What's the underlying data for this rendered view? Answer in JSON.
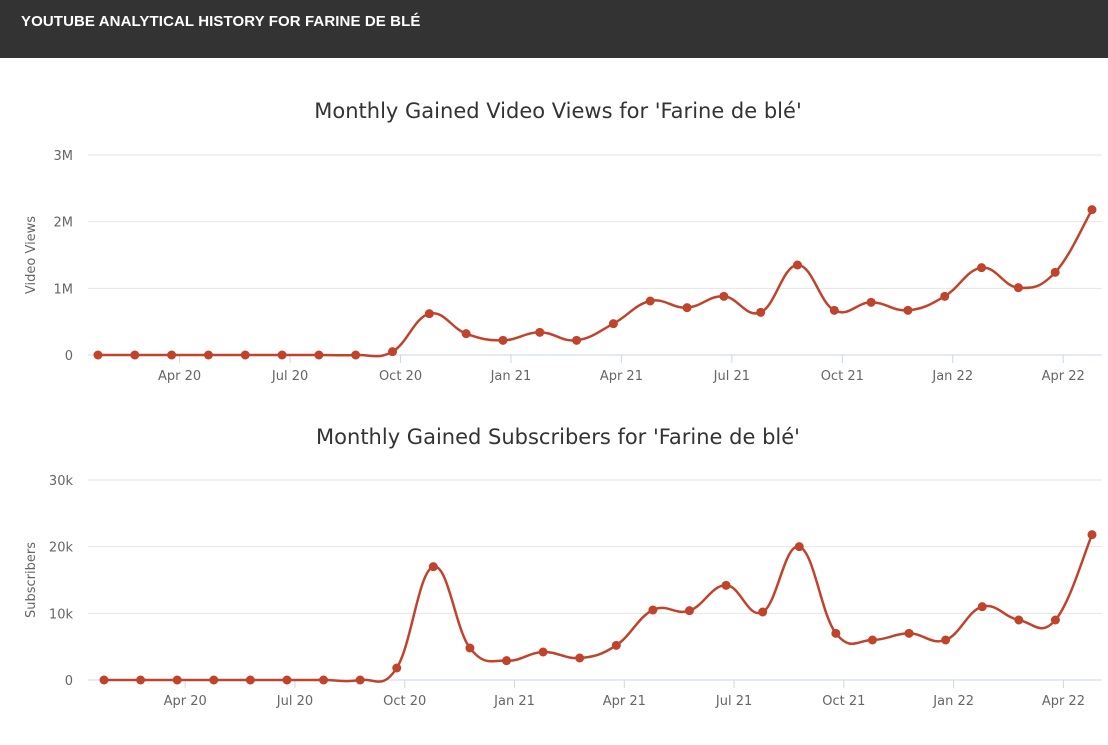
{
  "header": {
    "title": "YOUTUBE ANALYTICAL HISTORY FOR FARINE DE BLÉ"
  },
  "colors": {
    "series": "#c0432c",
    "grid": "#e6e6e6",
    "axis": "#ccd6eb",
    "header_bg": "#333333"
  },
  "chart_data": [
    {
      "type": "line",
      "title": "Monthly Gained Video Views for 'Farine de blé'",
      "xlabel": "",
      "ylabel": "Video Views",
      "ylim": [
        0,
        3000000
      ],
      "yticks": [
        {
          "value": 0,
          "label": "0"
        },
        {
          "value": 1000000,
          "label": "1M"
        },
        {
          "value": 2000000,
          "label": "2M"
        },
        {
          "value": 3000000,
          "label": "3M"
        }
      ],
      "xticks": [
        {
          "index": 2,
          "label": "Apr 20"
        },
        {
          "index": 5,
          "label": "Jul 20"
        },
        {
          "index": 8,
          "label": "Oct 20"
        },
        {
          "index": 11,
          "label": "Jan 21"
        },
        {
          "index": 14,
          "label": "Apr 21"
        },
        {
          "index": 17,
          "label": "Jul 21"
        },
        {
          "index": 20,
          "label": "Oct 21"
        },
        {
          "index": 23,
          "label": "Jan 22"
        },
        {
          "index": 26,
          "label": "Apr 22"
        }
      ],
      "x": [
        "Feb 20",
        "Mar 20",
        "Apr 20",
        "May 20",
        "Jun 20",
        "Jul 20",
        "Aug 20",
        "Sep 20",
        "Oct 20",
        "Nov 20",
        "Dec 20",
        "Jan 21",
        "Feb 21",
        "Mar 21",
        "Apr 21",
        "May 21",
        "Jun 21",
        "Jul 21",
        "Aug 21",
        "Sep 21",
        "Oct 21",
        "Nov 21",
        "Dec 21",
        "Jan 22",
        "Feb 22",
        "Mar 22",
        "Apr 22",
        "May 22"
      ],
      "series": [
        {
          "name": "Video Views",
          "values": [
            0,
            0,
            0,
            0,
            0,
            0,
            0,
            0,
            50000,
            620000,
            320000,
            220000,
            340000,
            220000,
            470000,
            810000,
            710000,
            880000,
            640000,
            1350000,
            670000,
            790000,
            670000,
            880000,
            1310000,
            1010000,
            1240000,
            2180000
          ]
        }
      ]
    },
    {
      "type": "line",
      "title": "Monthly Gained Subscribers for 'Farine de blé'",
      "xlabel": "",
      "ylabel": "Subscribers",
      "ylim": [
        0,
        30000
      ],
      "yticks": [
        {
          "value": 0,
          "label": "0"
        },
        {
          "value": 10000,
          "label": "10k"
        },
        {
          "value": 20000,
          "label": "20k"
        },
        {
          "value": 30000,
          "label": "30k"
        }
      ],
      "xticks": [
        {
          "index": 2,
          "label": "Apr 20"
        },
        {
          "index": 5,
          "label": "Jul 20"
        },
        {
          "index": 8,
          "label": "Oct 20"
        },
        {
          "index": 11,
          "label": "Jan 21"
        },
        {
          "index": 14,
          "label": "Apr 21"
        },
        {
          "index": 17,
          "label": "Jul 21"
        },
        {
          "index": 20,
          "label": "Oct 21"
        },
        {
          "index": 23,
          "label": "Jan 22"
        },
        {
          "index": 26,
          "label": "Apr 22"
        }
      ],
      "x": [
        "Feb 20",
        "Mar 20",
        "Apr 20",
        "May 20",
        "Jun 20",
        "Jul 20",
        "Aug 20",
        "Sep 20",
        "Oct 20",
        "Nov 20",
        "Dec 20",
        "Jan 21",
        "Feb 21",
        "Mar 21",
        "Apr 21",
        "May 21",
        "Jun 21",
        "Jul 21",
        "Aug 21",
        "Sep 21",
        "Oct 21",
        "Nov 21",
        "Dec 21",
        "Jan 22",
        "Feb 22",
        "Mar 22",
        "Apr 22",
        "May 22"
      ],
      "series": [
        {
          "name": "Subscribers",
          "values": [
            0,
            0,
            0,
            0,
            0,
            0,
            0,
            0,
            1800,
            17000,
            4800,
            2900,
            4200,
            3300,
            5200,
            10500,
            10400,
            14200,
            10200,
            20000,
            7000,
            6000,
            7000,
            6000,
            11000,
            9000,
            9000,
            21800
          ]
        }
      ]
    }
  ]
}
